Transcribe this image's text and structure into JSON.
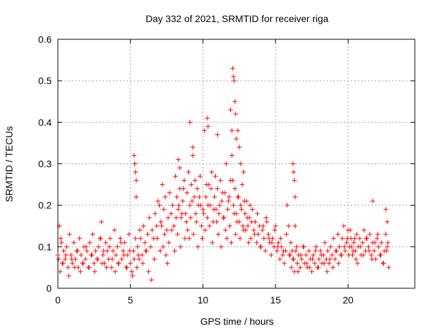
{
  "chart_data": {
    "type": "scatter",
    "title": "Day 332 of 2021, SRMTID for receiver riga",
    "xlabel": "GPS time / hours",
    "ylabel": "SRMTID / TECUs",
    "xlim": [
      0,
      24.6
    ],
    "ylim": [
      0,
      0.6
    ],
    "xticks": [
      0,
      5,
      10,
      15,
      20
    ],
    "xtick_labels": [
      "0",
      "5",
      "10",
      "15",
      "20"
    ],
    "yticks": [
      0,
      0.1,
      0.2,
      0.3,
      0.4,
      0.5,
      0.6
    ],
    "ytick_labels": [
      "0",
      "0.1",
      "0.2",
      "0.3",
      "0.4",
      "0.5",
      "0.6"
    ],
    "grid": true,
    "marker": "+",
    "color": "#ff0000",
    "series": [
      {
        "name": "SRMTID",
        "x": [
          0.0,
          0.1,
          0.2,
          0.3,
          0.4,
          0.5,
          0.6,
          0.7,
          0.8,
          0.9,
          1.0,
          1.1,
          1.2,
          1.3,
          1.4,
          1.5,
          1.6,
          1.7,
          1.8,
          1.9,
          2.0,
          2.1,
          2.2,
          2.3,
          2.4,
          2.5,
          2.6,
          2.7,
          2.8,
          2.9,
          3.0,
          3.1,
          3.2,
          3.3,
          3.4,
          3.5,
          3.6,
          3.7,
          3.8,
          3.9,
          4.0,
          4.1,
          4.2,
          4.3,
          4.4,
          4.5,
          4.6,
          4.7,
          4.8,
          4.9,
          5.0,
          5.1,
          5.2,
          5.3,
          5.4,
          5.5,
          5.6,
          5.7,
          5.8,
          5.9,
          6.0,
          6.1,
          6.2,
          6.3,
          6.4,
          6.5,
          6.6,
          6.7,
          6.8,
          6.9,
          7.0,
          7.1,
          7.2,
          7.3,
          7.4,
          7.5,
          7.6,
          7.7,
          7.8,
          7.9,
          8.0,
          8.1,
          8.2,
          8.3,
          8.4,
          8.5,
          8.6,
          8.7,
          8.8,
          8.9,
          9.0,
          9.1,
          9.2,
          9.3,
          9.4,
          9.5,
          9.6,
          9.7,
          9.8,
          9.9,
          10.0,
          10.1,
          10.2,
          10.3,
          10.4,
          10.5,
          10.6,
          10.7,
          10.8,
          10.9,
          11.0,
          11.1,
          11.2,
          11.3,
          11.4,
          11.5,
          11.6,
          11.7,
          11.8,
          11.9,
          12.0,
          12.1,
          12.2,
          12.3,
          12.4,
          12.5,
          12.6,
          12.7,
          12.8,
          12.9,
          13.0,
          13.1,
          13.2,
          13.3,
          13.4,
          13.5,
          13.6,
          13.7,
          13.8,
          13.9,
          14.0,
          14.1,
          14.2,
          14.3,
          14.4,
          14.5,
          14.6,
          14.7,
          14.8,
          14.9,
          15.0,
          15.1,
          15.2,
          15.3,
          15.4,
          15.5,
          15.6,
          15.7,
          15.8,
          15.9,
          16.0,
          16.1,
          16.2,
          16.3,
          16.4,
          16.5,
          16.6,
          16.7,
          16.8,
          16.9,
          17.0,
          17.1,
          17.2,
          17.3,
          17.4,
          17.5,
          17.6,
          17.7,
          17.8,
          17.9,
          18.0,
          18.1,
          18.2,
          18.3,
          18.4,
          18.5,
          18.6,
          18.7,
          18.8,
          18.9,
          19.0,
          19.1,
          19.2,
          19.3,
          19.4,
          19.5,
          19.6,
          19.7,
          19.8,
          19.9,
          20.0,
          20.1,
          20.2,
          20.3,
          20.4,
          20.5,
          20.6,
          20.7,
          20.8,
          20.9,
          21.0,
          21.1,
          21.2,
          21.3,
          21.4,
          21.5,
          21.6,
          21.7,
          21.8,
          21.9,
          22.0,
          22.1,
          22.2,
          22.3,
          22.4,
          22.5,
          22.6,
          22.7,
          22.8,
          0.05,
          0.15,
          0.25,
          0.35,
          0.55,
          0.75,
          0.95,
          1.15,
          1.35,
          1.55,
          1.75,
          1.95,
          2.15,
          2.35,
          2.55,
          2.75,
          2.95,
          3.05,
          3.15,
          3.35,
          3.55,
          3.75,
          3.95,
          4.15,
          4.35,
          4.55,
          4.75,
          4.95,
          5.15,
          5.25,
          5.35,
          5.45,
          5.55,
          5.65,
          5.85,
          6.05,
          6.25,
          6.45,
          6.65,
          6.85,
          7.05,
          7.15,
          7.25,
          7.35,
          7.45,
          7.55,
          7.65,
          7.85,
          8.05,
          8.15,
          8.25,
          8.35,
          8.45,
          8.55,
          8.65,
          8.75,
          8.85,
          8.95,
          9.05,
          9.15,
          9.25,
          9.35,
          9.45,
          9.55,
          9.65,
          9.75,
          9.85,
          9.95,
          10.05,
          10.15,
          10.25,
          10.35,
          10.45,
          10.55,
          10.65,
          10.75,
          10.85,
          10.95,
          11.05,
          11.15,
          11.25,
          11.35,
          11.45,
          11.55,
          11.65,
          11.75,
          11.85,
          11.95,
          12.05,
          12.15,
          12.25,
          12.35,
          12.45,
          12.55,
          12.65,
          12.75,
          12.85,
          12.95,
          13.05,
          13.15,
          13.25,
          13.35,
          13.55,
          13.75,
          13.95,
          14.15,
          14.35,
          14.55,
          14.75,
          14.95,
          15.15,
          15.35,
          15.55,
          15.75,
          15.95,
          16.05,
          16.15,
          16.25,
          16.35,
          16.45,
          16.55,
          16.75,
          16.95,
          17.15,
          17.35,
          17.55,
          17.75,
          17.95,
          18.15,
          18.35,
          18.55,
          18.75,
          18.95,
          19.15,
          19.35,
          19.55,
          19.75,
          19.95,
          20.05,
          20.15,
          20.25,
          20.35,
          20.45,
          20.55,
          20.65,
          20.85,
          21.05,
          21.25,
          21.45,
          21.65,
          21.85,
          22.05,
          22.25,
          22.45,
          22.65,
          22.75,
          5.25,
          5.3,
          5.35,
          5.4,
          8.3,
          8.4,
          9.1,
          9.3,
          10.3,
          10.35,
          11.0,
          11.9,
          12.0,
          12.05,
          12.1,
          12.15,
          12.2,
          12.25,
          12.3,
          12.4,
          12.5,
          12.6,
          12.8,
          16.2,
          16.25,
          16.3,
          16.35,
          21.7,
          22.6,
          22.7
        ],
        "y": [
          0.08,
          0.15,
          0.12,
          0.06,
          0.09,
          0.07,
          0.1,
          0.05,
          0.13,
          0.08,
          0.06,
          0.11,
          0.07,
          0.09,
          0.05,
          0.12,
          0.08,
          0.06,
          0.1,
          0.07,
          0.09,
          0.05,
          0.11,
          0.08,
          0.13,
          0.06,
          0.09,
          0.07,
          0.1,
          0.12,
          0.16,
          0.08,
          0.06,
          0.11,
          0.09,
          0.07,
          0.12,
          0.05,
          0.09,
          0.14,
          0.08,
          0.1,
          0.06,
          0.12,
          0.07,
          0.09,
          0.11,
          0.05,
          0.08,
          0.13,
          0.06,
          0.04,
          0.09,
          0.3,
          0.22,
          0.1,
          0.07,
          0.12,
          0.08,
          0.15,
          0.11,
          0.09,
          0.13,
          0.17,
          0.1,
          0.14,
          0.12,
          0.18,
          0.15,
          0.21,
          0.2,
          0.16,
          0.25,
          0.19,
          0.22,
          0.14,
          0.17,
          0.23,
          0.18,
          0.2,
          0.15,
          0.27,
          0.22,
          0.19,
          0.24,
          0.17,
          0.21,
          0.26,
          0.18,
          0.23,
          0.28,
          0.2,
          0.25,
          0.32,
          0.22,
          0.18,
          0.24,
          0.2,
          0.27,
          0.15,
          0.19,
          0.38,
          0.22,
          0.17,
          0.25,
          0.2,
          0.28,
          0.16,
          0.22,
          0.19,
          0.24,
          0.18,
          0.26,
          0.21,
          0.17,
          0.23,
          0.3,
          0.19,
          0.22,
          0.26,
          0.32,
          0.2,
          0.24,
          0.18,
          0.22,
          0.16,
          0.2,
          0.25,
          0.14,
          0.18,
          0.21,
          0.15,
          0.17,
          0.12,
          0.19,
          0.14,
          0.16,
          0.11,
          0.13,
          0.15,
          0.1,
          0.14,
          0.12,
          0.09,
          0.16,
          0.13,
          0.11,
          0.08,
          0.12,
          0.1,
          0.15,
          0.09,
          0.11,
          0.07,
          0.1,
          0.08,
          0.06,
          0.09,
          0.2,
          0.15,
          0.08,
          0.05,
          0.07,
          0.04,
          0.09,
          0.06,
          0.08,
          0.05,
          0.07,
          0.1,
          0.06,
          0.08,
          0.05,
          0.09,
          0.07,
          0.04,
          0.08,
          0.06,
          0.1,
          0.05,
          0.07,
          0.09,
          0.06,
          0.08,
          0.11,
          0.07,
          0.09,
          0.06,
          0.1,
          0.08,
          0.12,
          0.07,
          0.09,
          0.13,
          0.1,
          0.08,
          0.12,
          0.15,
          0.09,
          0.11,
          0.14,
          0.1,
          0.12,
          0.08,
          0.11,
          0.09,
          0.13,
          0.1,
          0.12,
          0.08,
          0.11,
          0.14,
          0.09,
          0.12,
          0.1,
          0.13,
          0.08,
          0.11,
          0.09,
          0.07,
          0.12,
          0.1,
          0.08,
          0.11,
          0.06,
          0.09,
          0.13,
          0.1,
          0.05,
          0.07,
          0.04,
          0.11,
          0.06,
          0.08,
          0.03,
          0.07,
          0.05,
          0.09,
          0.04,
          0.06,
          0.1,
          0.05,
          0.08,
          0.04,
          0.07,
          0.12,
          0.06,
          0.09,
          0.05,
          0.1,
          0.07,
          0.04,
          0.06,
          0.11,
          0.08,
          0.05,
          0.09,
          0.03,
          0.07,
          0.12,
          0.05,
          0.08,
          0.14,
          0.06,
          0.09,
          0.04,
          0.02,
          0.07,
          0.12,
          0.09,
          0.15,
          0.1,
          0.13,
          0.08,
          0.06,
          0.11,
          0.14,
          0.09,
          0.17,
          0.13,
          0.2,
          0.1,
          0.18,
          0.24,
          0.12,
          0.16,
          0.14,
          0.12,
          0.17,
          0.21,
          0.13,
          0.26,
          0.16,
          0.1,
          0.22,
          0.2,
          0.12,
          0.18,
          0.14,
          0.25,
          0.2,
          0.15,
          0.24,
          0.11,
          0.19,
          0.27,
          0.16,
          0.13,
          0.2,
          0.1,
          0.23,
          0.17,
          0.14,
          0.12,
          0.21,
          0.15,
          0.11,
          0.26,
          0.18,
          0.13,
          0.16,
          0.22,
          0.12,
          0.19,
          0.15,
          0.21,
          0.14,
          0.17,
          0.11,
          0.2,
          0.16,
          0.13,
          0.18,
          0.1,
          0.15,
          0.17,
          0.12,
          0.11,
          0.14,
          0.1,
          0.12,
          0.09,
          0.13,
          0.08,
          0.11,
          0.09,
          0.07,
          0.15,
          0.1,
          0.04,
          0.08,
          0.1,
          0.06,
          0.05,
          0.07,
          0.09,
          0.05,
          0.08,
          0.06,
          0.04,
          0.07,
          0.05,
          0.09,
          0.06,
          0.08,
          0.1,
          0.12,
          0.08,
          0.14,
          0.1,
          0.09,
          0.12,
          0.07,
          0.06,
          0.1,
          0.08,
          0.12,
          0.09,
          0.07,
          0.11,
          0.13,
          0.08,
          0.06,
          0.09,
          0.11,
          0.32,
          0.3,
          0.28,
          0.26,
          0.31,
          0.29,
          0.4,
          0.34,
          0.41,
          0.39,
          0.37,
          0.43,
          0.38,
          0.53,
          0.51,
          0.5,
          0.45,
          0.42,
          0.36,
          0.38,
          0.34,
          0.3,
          0.28,
          0.3,
          0.28,
          0.26,
          0.22,
          0.21,
          0.19,
          0.16
        ]
      }
    ]
  }
}
